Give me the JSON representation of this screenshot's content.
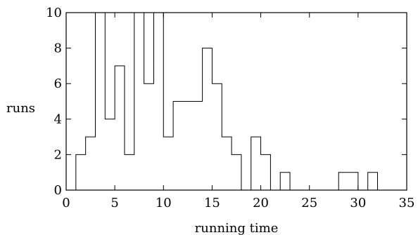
{
  "chart_data": {
    "type": "histogram",
    "title": "",
    "xlabel": "running time",
    "ylabel": "runs",
    "xlim": [
      0,
      35
    ],
    "ylim": [
      0,
      10
    ],
    "xticks": [
      0,
      5,
      10,
      15,
      20,
      25,
      30,
      35
    ],
    "yticks": [
      0,
      2,
      4,
      6,
      8,
      10
    ],
    "xtick_labels": [
      "0",
      "5",
      "10",
      "15",
      "20",
      "25",
      "30",
      "35"
    ],
    "ytick_labels": [
      "0",
      "2",
      "4",
      "6",
      "8",
      "10"
    ],
    "grid": false,
    "bin_width": 1,
    "bins": [
      {
        "start": 0,
        "end": 1,
        "value": 0
      },
      {
        "start": 1,
        "end": 2,
        "value": 2
      },
      {
        "start": 2,
        "end": 3,
        "value": 3
      },
      {
        "start": 3,
        "end": 4,
        "value": 10
      },
      {
        "start": 4,
        "end": 5,
        "value": 4
      },
      {
        "start": 5,
        "end": 6,
        "value": 7
      },
      {
        "start": 6,
        "end": 7,
        "value": 2
      },
      {
        "start": 7,
        "end": 8,
        "value": 10
      },
      {
        "start": 8,
        "end": 9,
        "value": 6
      },
      {
        "start": 9,
        "end": 10,
        "value": 10
      },
      {
        "start": 10,
        "end": 11,
        "value": 3
      },
      {
        "start": 11,
        "end": 12,
        "value": 5
      },
      {
        "start": 12,
        "end": 13,
        "value": 5
      },
      {
        "start": 13,
        "end": 14,
        "value": 5
      },
      {
        "start": 14,
        "end": 15,
        "value": 8
      },
      {
        "start": 15,
        "end": 16,
        "value": 6
      },
      {
        "start": 16,
        "end": 17,
        "value": 3
      },
      {
        "start": 17,
        "end": 18,
        "value": 2
      },
      {
        "start": 18,
        "end": 19,
        "value": 0
      },
      {
        "start": 19,
        "end": 20,
        "value": 3
      },
      {
        "start": 20,
        "end": 21,
        "value": 2
      },
      {
        "start": 21,
        "end": 22,
        "value": 0
      },
      {
        "start": 22,
        "end": 23,
        "value": 1
      },
      {
        "start": 23,
        "end": 24,
        "value": 0
      },
      {
        "start": 24,
        "end": 25,
        "value": 0
      },
      {
        "start": 25,
        "end": 26,
        "value": 0
      },
      {
        "start": 26,
        "end": 27,
        "value": 0
      },
      {
        "start": 27,
        "end": 28,
        "value": 0
      },
      {
        "start": 28,
        "end": 29,
        "value": 1
      },
      {
        "start": 29,
        "end": 30,
        "value": 1
      },
      {
        "start": 30,
        "end": 31,
        "value": 0
      },
      {
        "start": 31,
        "end": 32,
        "value": 1
      },
      {
        "start": 32,
        "end": 33,
        "value": 0
      }
    ]
  }
}
